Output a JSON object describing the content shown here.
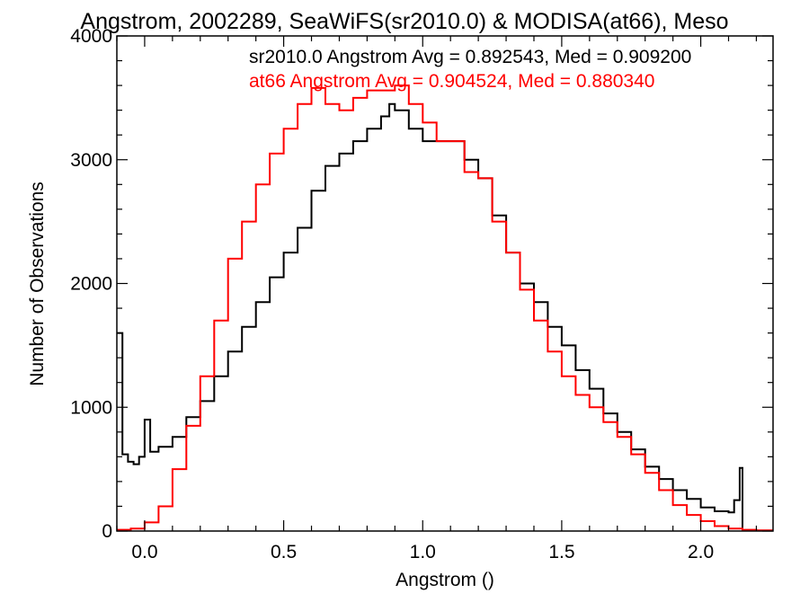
{
  "chart_data": {
    "type": "histogram",
    "title": "Angstrom, 2002289, SeaWiFS(sr2010.0) & MODISA(at66), Meso",
    "xlabel": "Angstrom ()",
    "ylabel": "Number of Observations",
    "xlim": [
      -0.1,
      2.26
    ],
    "ylim": [
      0,
      4000
    ],
    "xticks": [
      0.0,
      0.5,
      1.0,
      1.5,
      2.0
    ],
    "xtick_labels": [
      "0.0",
      "0.5",
      "1.0",
      "1.5",
      "2.0"
    ],
    "yticks": [
      0,
      1000,
      2000,
      3000,
      4000
    ],
    "ytick_labels": [
      "0",
      "1000",
      "2000",
      "3000",
      "4000"
    ],
    "grid": false,
    "legend": [
      {
        "text": "sr2010.0 Angstrom Avg = 0.892543, Med = 0.909200",
        "color": "#000000"
      },
      {
        "text": "at66 Angstrom Avg = 0.904524, Med = 0.880340",
        "color": "#ff0000"
      }
    ],
    "series": [
      {
        "name": "sr2010.0",
        "color": "#000000",
        "x": [
          -0.1,
          -0.08,
          -0.06,
          -0.04,
          -0.02,
          0.0,
          0.02,
          0.05,
          0.1,
          0.15,
          0.2,
          0.25,
          0.3,
          0.35,
          0.4,
          0.45,
          0.5,
          0.55,
          0.6,
          0.65,
          0.7,
          0.75,
          0.8,
          0.85,
          0.88,
          0.9,
          0.95,
          1.0,
          1.05,
          1.1,
          1.15,
          1.2,
          1.25,
          1.3,
          1.35,
          1.4,
          1.45,
          1.5,
          1.55,
          1.6,
          1.65,
          1.7,
          1.75,
          1.8,
          1.85,
          1.9,
          1.95,
          2.0,
          2.05,
          2.1,
          2.12,
          2.14,
          2.15,
          2.17
        ],
        "y": [
          1600,
          620,
          560,
          540,
          600,
          900,
          640,
          680,
          760,
          920,
          1050,
          1250,
          1450,
          1650,
          1850,
          2050,
          2250,
          2450,
          2750,
          2950,
          3050,
          3150,
          3250,
          3350,
          3450,
          3400,
          3250,
          3150,
          3150,
          3150,
          3000,
          2850,
          2550,
          2250,
          2000,
          1850,
          1650,
          1500,
          1300,
          1150,
          950,
          800,
          660,
          520,
          420,
          330,
          260,
          190,
          160,
          150,
          250,
          510,
          0,
          0
        ]
      },
      {
        "name": "at66",
        "color": "#ff0000",
        "x": [
          -0.1,
          -0.05,
          0.0,
          0.05,
          0.1,
          0.15,
          0.2,
          0.25,
          0.3,
          0.35,
          0.4,
          0.45,
          0.5,
          0.55,
          0.6,
          0.65,
          0.7,
          0.75,
          0.8,
          0.85,
          0.9,
          0.95,
          1.0,
          1.05,
          1.1,
          1.15,
          1.2,
          1.25,
          1.3,
          1.35,
          1.4,
          1.45,
          1.5,
          1.55,
          1.6,
          1.65,
          1.7,
          1.75,
          1.8,
          1.85,
          1.9,
          1.95,
          2.0,
          2.05,
          2.1,
          2.15,
          2.2,
          2.26
        ],
        "y": [
          10,
          20,
          70,
          200,
          500,
          850,
          1250,
          1700,
          2200,
          2500,
          2800,
          3050,
          3250,
          3450,
          3580,
          3450,
          3400,
          3500,
          3560,
          3560,
          3600,
          3450,
          3300,
          3150,
          3150,
          2900,
          2850,
          2500,
          2250,
          1950,
          1700,
          1450,
          1250,
          1100,
          1000,
          880,
          760,
          620,
          470,
          330,
          210,
          130,
          80,
          40,
          20,
          10,
          5,
          5
        ]
      }
    ]
  }
}
